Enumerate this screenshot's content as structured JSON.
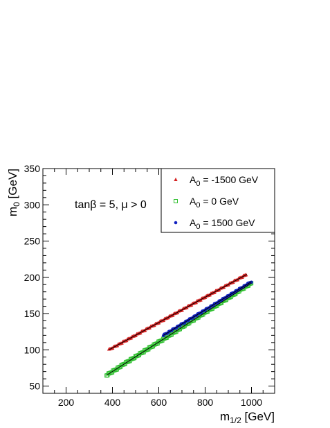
{
  "chart_data": {
    "type": "scatter",
    "title": "",
    "xlabel": {
      "base": "m",
      "sub": "1/2",
      "unit": " [GeV]"
    },
    "ylabel": {
      "base": "m",
      "sub": "0",
      "unit": " [GeV]"
    },
    "xlim": [
      100,
      1100
    ],
    "ylim": [
      40,
      350
    ],
    "x_ticks": [
      200,
      400,
      600,
      800,
      1000
    ],
    "x_tick_labels": [
      "200",
      "400",
      "600",
      "800",
      "1000"
    ],
    "y_ticks": [
      50,
      100,
      150,
      200,
      250,
      300,
      350
    ],
    "y_tick_labels": [
      "50",
      "100",
      "150",
      "200",
      "250",
      "300",
      "350"
    ],
    "grid": false,
    "legend_position": "top-right",
    "annotation": "tanβ = 5, μ > 0",
    "series": [
      {
        "name": "A₀ = -1500 GeV",
        "legend": {
          "base": "A",
          "sub": "0",
          "rest": " = -1500 GeV"
        },
        "marker": "triangle",
        "color": "#d42020",
        "line": {
          "x": [
            385,
            980
          ],
          "y": [
            100,
            204
          ]
        },
        "step_x": 20,
        "step_y": 3.5
      },
      {
        "name": "A₀ = 0 GeV",
        "legend": {
          "base": "A",
          "sub": "0",
          "rest": " = 0 GeV"
        },
        "marker": "open-square",
        "color": "#30c030",
        "line": {
          "x": [
            375,
            1000
          ],
          "y": [
            65,
            192
          ]
        },
        "step_x": 20,
        "step_y": 4
      },
      {
        "name": "A₀ = 1500 GeV",
        "legend": {
          "base": "A",
          "sub": "0",
          "rest": " = 1500 GeV"
        },
        "marker": "dot",
        "color": "#1020c0",
        "line": {
          "x": [
            620,
            1000
          ],
          "y": [
            120,
            194
          ]
        },
        "step_x": 20,
        "step_y": 3.5
      }
    ]
  }
}
